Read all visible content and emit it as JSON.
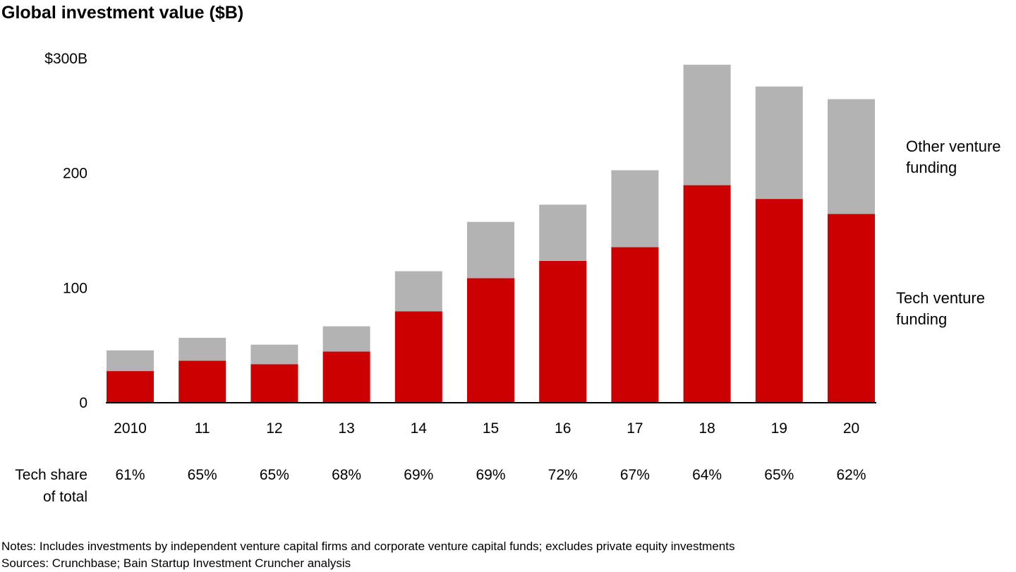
{
  "chart_data": {
    "type": "bar",
    "stacked": true,
    "title": "Global investment value ($B)",
    "xlabel": "",
    "ylabel": "",
    "ylim": [
      0,
      300
    ],
    "y_ticks": [
      "0",
      "100",
      "200",
      "$300B"
    ],
    "y_tick_values": [
      0,
      100,
      200,
      300
    ],
    "grid": false,
    "categories": [
      "2010",
      "11",
      "12",
      "13",
      "14",
      "15",
      "16",
      "17",
      "18",
      "19",
      "20"
    ],
    "series": [
      {
        "name": "Tech venture funding",
        "color": "#cc0000",
        "values": [
          27,
          36,
          33,
          44,
          79,
          108,
          123,
          135,
          189,
          177,
          164
        ]
      },
      {
        "name": "Other venture funding",
        "color": "#b3b3b3",
        "values": [
          18,
          20,
          17,
          22,
          35,
          49,
          49,
          67,
          105,
          98,
          100
        ]
      }
    ],
    "legend_placement": "right",
    "share_row": {
      "label": [
        "Tech share",
        "of total"
      ],
      "values": [
        "61%",
        "65%",
        "65%",
        "68%",
        "69%",
        "69%",
        "72%",
        "67%",
        "64%",
        "65%",
        "62%"
      ]
    }
  },
  "notes": [
    "Notes: Includes investments by independent venture capital firms and corporate venture capital funds; excludes private equity investments",
    "Sources: Crunchbase; Bain Startup Investment Cruncher analysis"
  ]
}
